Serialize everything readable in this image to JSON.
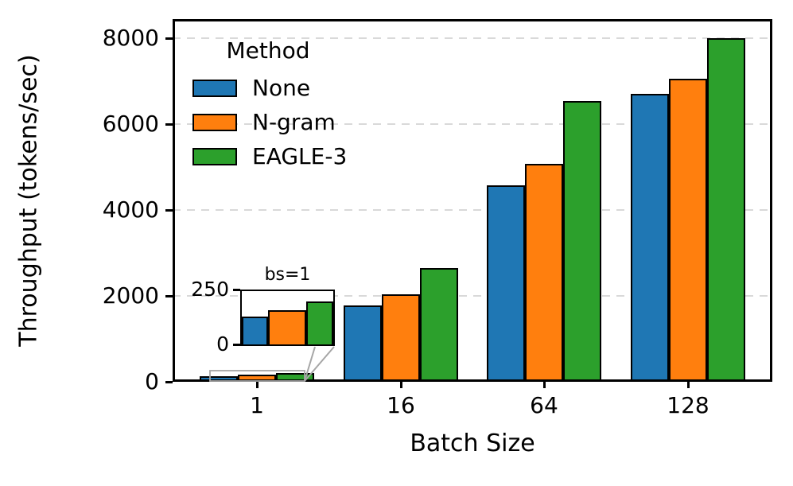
{
  "chart_data": {
    "type": "bar",
    "title": "",
    "xlabel": "Batch Size",
    "ylabel": "Throughput (tokens/sec)",
    "categories": [
      "1",
      "16",
      "64",
      "128"
    ],
    "series": [
      {
        "name": "None",
        "color": "#1f77b4",
        "values": [
          130,
          1770,
          4570,
          6700
        ]
      },
      {
        "name": "N-gram",
        "color": "#ff7f0e",
        "values": [
          160,
          2030,
          5080,
          7060
        ]
      },
      {
        "name": "EAGLE-3",
        "color": "#2ca02c",
        "values": [
          200,
          2640,
          6540,
          8000
        ]
      }
    ],
    "ylim": [
      0,
      8440
    ],
    "yticks": [
      0,
      2000,
      4000,
      6000,
      8000
    ],
    "grid": "horizontal-dashed",
    "legend_title": "Method",
    "legend_position": "upper-left",
    "inset": {
      "title": "bs=1",
      "description": "zoom of batch size 1 bars",
      "ylim": [
        0,
        250
      ],
      "yticks": [
        0,
        250
      ],
      "values": [
        130,
        160,
        200
      ]
    }
  },
  "colors": {
    "background": "#ffffff",
    "axis": "#000000",
    "gridline": "#d9d9d9",
    "zoom_indicator": "#a6a6a6"
  }
}
